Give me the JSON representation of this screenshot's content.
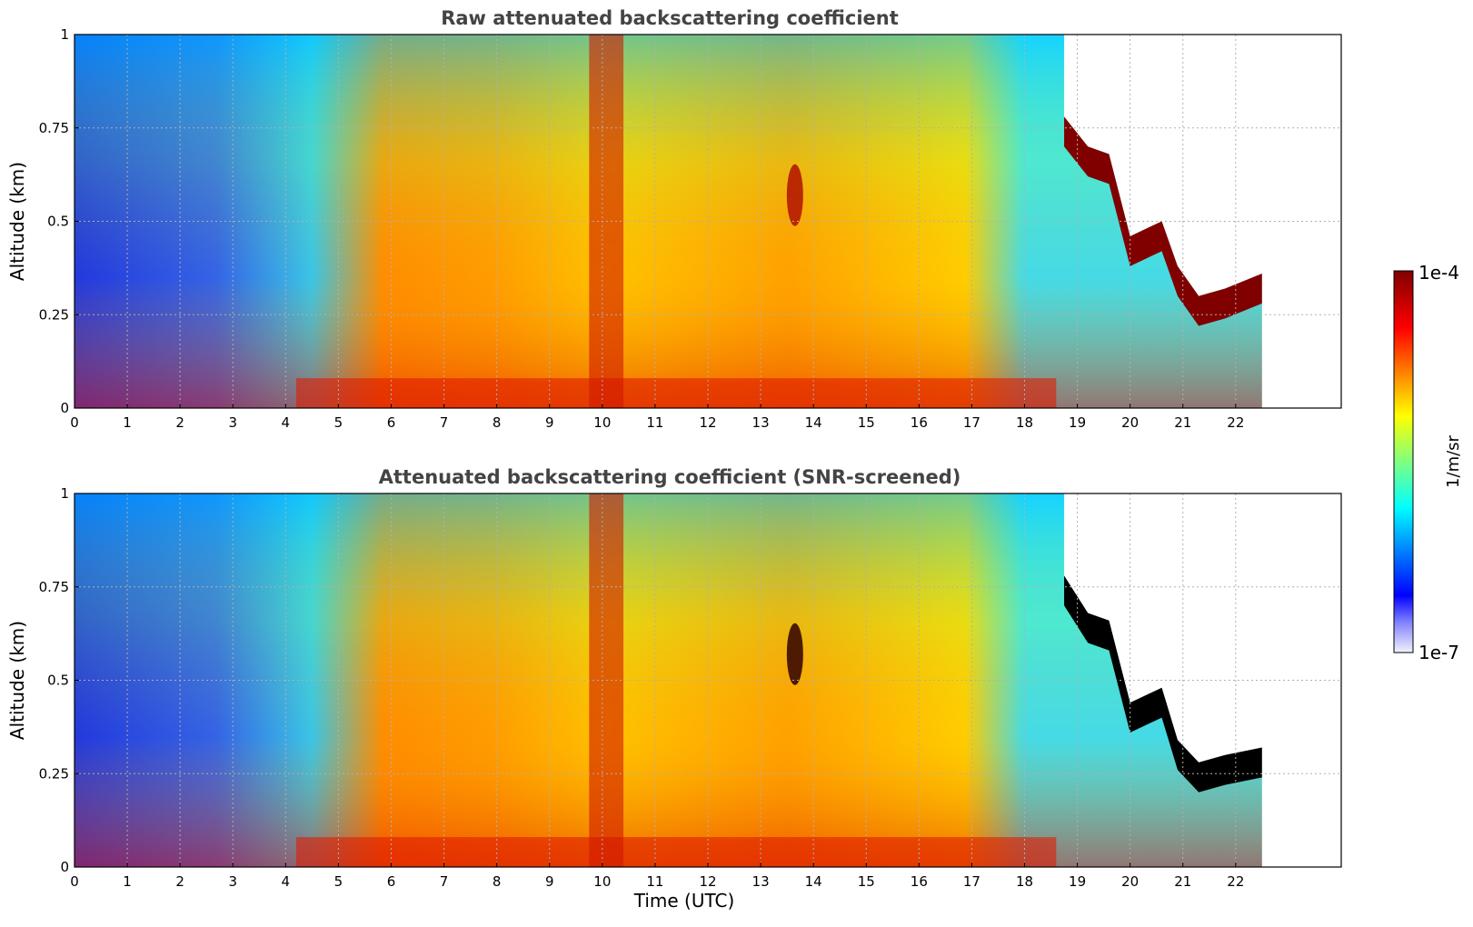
{
  "chart_data": {
    "type": "heatmap",
    "xlabel": "Time (UTC)",
    "xlim": [
      0,
      24
    ],
    "x_ticks": [
      "0",
      "1",
      "2",
      "3",
      "4",
      "5",
      "6",
      "7",
      "8",
      "9",
      "10",
      "11",
      "12",
      "13",
      "14",
      "15",
      "16",
      "17",
      "18",
      "19",
      "20",
      "21",
      "22"
    ],
    "grid": true,
    "panels": [
      {
        "title": "Raw attenuated backscattering coefficient",
        "ylabel": "Altitude (km)",
        "ylim": [
          0,
          1
        ],
        "y_ticks": [
          "0",
          "0.25",
          "0.5",
          "0.75",
          "1"
        ],
        "data_end_hour": 22.5,
        "cloud_base_km": [
          [
            18.75,
            0.7
          ],
          [
            19.2,
            0.62
          ],
          [
            19.6,
            0.6
          ],
          [
            20.0,
            0.38
          ],
          [
            20.6,
            0.42
          ],
          [
            20.9,
            0.3
          ],
          [
            21.3,
            0.22
          ],
          [
            21.8,
            0.24
          ],
          [
            22.5,
            0.28
          ]
        ],
        "cloud_color": "#800000"
      },
      {
        "title": "Attenuated backscattering coefficient (SNR-screened)",
        "ylabel": "Altitude (km)",
        "ylim": [
          0,
          1
        ],
        "y_ticks": [
          "0",
          "0.25",
          "0.5",
          "0.75",
          "1"
        ],
        "data_end_hour": 22.5,
        "cloud_base_km": [
          [
            18.75,
            0.7
          ],
          [
            19.2,
            0.6
          ],
          [
            19.6,
            0.58
          ],
          [
            20.0,
            0.36
          ],
          [
            20.6,
            0.4
          ],
          [
            20.9,
            0.26
          ],
          [
            21.3,
            0.2
          ],
          [
            21.8,
            0.22
          ],
          [
            22.5,
            0.24
          ]
        ],
        "cloud_color": "#000000"
      }
    ],
    "colorbar": {
      "label": "1/m/sr",
      "min_label": "1e-7",
      "max_label": "1e-4",
      "scale": "log",
      "range": [
        1e-07,
        0.0001
      ],
      "colormap": [
        "#f2f2fb",
        "#0000ff",
        "#00ffff",
        "#ffff00",
        "#ff0000",
        "#800000"
      ]
    }
  }
}
